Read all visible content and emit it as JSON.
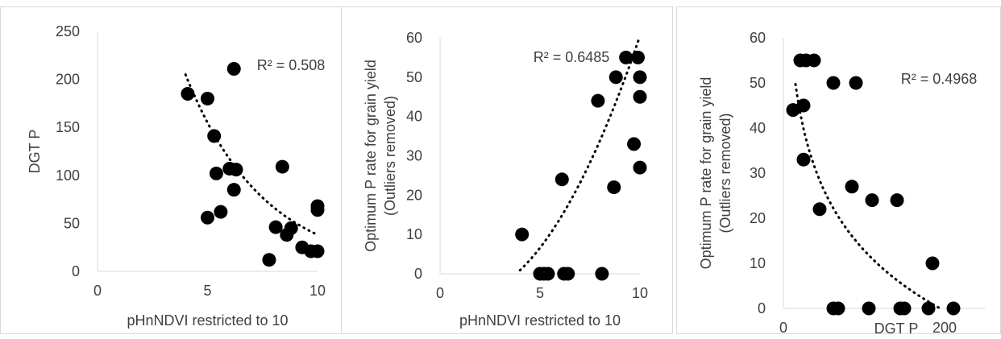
{
  "chart_data": [
    {
      "type": "scatter",
      "xlabel": "pHnNDVI restricted to 10",
      "ylabel": "DGT P",
      "xlim": [
        0,
        10
      ],
      "ylim": [
        0,
        250
      ],
      "xticks": [
        0,
        5,
        10
      ],
      "yticks": [
        0,
        50,
        100,
        150,
        200,
        250
      ],
      "grid": false,
      "legend": "none",
      "points": [
        {
          "x": 4.1,
          "y": 185
        },
        {
          "x": 5.0,
          "y": 180
        },
        {
          "x": 6.2,
          "y": 211
        },
        {
          "x": 5.3,
          "y": 141
        },
        {
          "x": 5.4,
          "y": 102
        },
        {
          "x": 6.0,
          "y": 107
        },
        {
          "x": 6.3,
          "y": 106
        },
        {
          "x": 6.2,
          "y": 85
        },
        {
          "x": 5.0,
          "y": 56
        },
        {
          "x": 5.6,
          "y": 62
        },
        {
          "x": 8.4,
          "y": 109
        },
        {
          "x": 8.1,
          "y": 46
        },
        {
          "x": 8.6,
          "y": 38
        },
        {
          "x": 8.8,
          "y": 45
        },
        {
          "x": 7.8,
          "y": 12
        },
        {
          "x": 9.3,
          "y": 25
        },
        {
          "x": 9.7,
          "y": 21
        },
        {
          "x": 10.0,
          "y": 21
        },
        {
          "x": 10.0,
          "y": 68
        },
        {
          "x": 10.0,
          "y": 64
        }
      ],
      "trendline": {
        "type": "exponential",
        "style": "dotted",
        "x_range": [
          4,
          10
        ],
        "a": 629.2,
        "b": -0.2803
      },
      "annotation": "R² = 0.508"
    },
    {
      "type": "scatter",
      "xlabel": "pHnNDVI restricted to 10",
      "ylabel": "Optimum P rate for grain yield\n(Outliers removed)",
      "xlim": [
        0,
        10
      ],
      "ylim": [
        0,
        60
      ],
      "xticks": [
        0,
        5,
        10
      ],
      "yticks": [
        0,
        10,
        20,
        30,
        40,
        50,
        60
      ],
      "grid": false,
      "legend": "none",
      "points": [
        {
          "x": 4.1,
          "y": 10
        },
        {
          "x": 5.0,
          "y": 0
        },
        {
          "x": 5.2,
          "y": 0
        },
        {
          "x": 5.4,
          "y": 0
        },
        {
          "x": 6.1,
          "y": 24
        },
        {
          "x": 6.2,
          "y": 0
        },
        {
          "x": 6.4,
          "y": 0
        },
        {
          "x": 7.9,
          "y": 44
        },
        {
          "x": 8.1,
          "y": 0
        },
        {
          "x": 8.7,
          "y": 22
        },
        {
          "x": 8.8,
          "y": 50
        },
        {
          "x": 9.3,
          "y": 55
        },
        {
          "x": 9.7,
          "y": 33
        },
        {
          "x": 9.9,
          "y": 55
        },
        {
          "x": 10.0,
          "y": 50
        },
        {
          "x": 10.0,
          "y": 45
        },
        {
          "x": 10.0,
          "y": 27
        }
      ],
      "trendline": {
        "type": "polynomial",
        "style": "dotted",
        "x_range": [
          4,
          10
        ],
        "coefficients": [
          -5.12,
          -1.867,
          0.8425
        ]
      },
      "annotation": "R² = 0.6485"
    },
    {
      "type": "scatter",
      "xlabel": "DGT P",
      "ylabel": "Optimum P rate for grain yield\n(Outliers removed)",
      "xlim": [
        0,
        250
      ],
      "ylim": [
        0,
        60
      ],
      "xticks": [
        0,
        100,
        200
      ],
      "xtick_labels": [
        "0",
        "",
        "200"
      ],
      "yticks": [
        0,
        10,
        20,
        30,
        40,
        50,
        60
      ],
      "grid": false,
      "legend": "none",
      "points": [
        {
          "x": 12,
          "y": 44
        },
        {
          "x": 21,
          "y": 55
        },
        {
          "x": 25,
          "y": 45
        },
        {
          "x": 25,
          "y": 33
        },
        {
          "x": 28,
          "y": 55
        },
        {
          "x": 38,
          "y": 55
        },
        {
          "x": 45,
          "y": 22
        },
        {
          "x": 62,
          "y": 50
        },
        {
          "x": 62,
          "y": 0
        },
        {
          "x": 68,
          "y": 0
        },
        {
          "x": 85,
          "y": 27
        },
        {
          "x": 90,
          "y": 50
        },
        {
          "x": 106,
          "y": 0
        },
        {
          "x": 110,
          "y": 24
        },
        {
          "x": 141,
          "y": 24
        },
        {
          "x": 145,
          "y": 0
        },
        {
          "x": 150,
          "y": 0
        },
        {
          "x": 180,
          "y": 0
        },
        {
          "x": 185,
          "y": 10
        },
        {
          "x": 211,
          "y": 0
        }
      ],
      "trendline": {
        "type": "logarithmic",
        "style": "dotted",
        "x_range": [
          15,
          196
        ],
        "a": 102.3,
        "b": -19.41
      },
      "annotation": "R² = 0.4968"
    }
  ]
}
